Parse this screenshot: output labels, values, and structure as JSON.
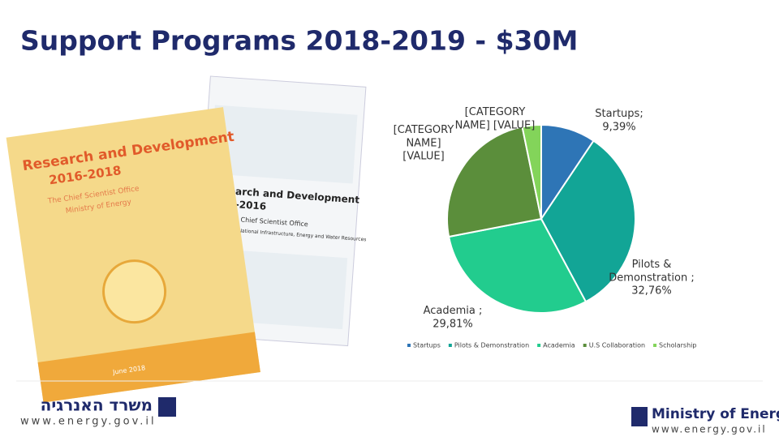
{
  "title": "Support Programs 2018-2019 - $30M",
  "chart_data": {
    "type": "pie",
    "categories": [
      "Startups",
      "Pilots & Demonstration",
      "Academia",
      "U.S Collaboration",
      "Scholarship"
    ],
    "values": [
      9.39,
      32.76,
      29.81,
      24.8,
      3.24
    ],
    "value_labels": [
      "Startups; 9,39%",
      "Pilots & Demonstration ; 32,76%",
      "Academia ; 29,81%",
      "[CATEGORY NAME] [VALUE]",
      "[CATEGORY NAME] [VALUE]"
    ],
    "colors": [
      "#2e75b6",
      "#12a596",
      "#22cc8e",
      "#5b8e3b",
      "#83d45a"
    ],
    "legend": "bottom"
  },
  "books": [
    {
      "title": "Research and Development",
      "years": "2016-2018",
      "office": "The Chief Scientist Office",
      "ministry": "Ministry of Energy",
      "date": "June 2018"
    },
    {
      "title": "Research and Development",
      "years": "2014-2016",
      "office": "The Chief Scientist Office",
      "ministry": "Ministry of National Infrastructure, Energy and Water Resources"
    }
  ],
  "footer": {
    "hebrew": "משרד האנרגיה",
    "url_left": "www.energy.gov.il",
    "ministry": "Ministry of Energy",
    "url_right": "www.energy.gov.il"
  }
}
